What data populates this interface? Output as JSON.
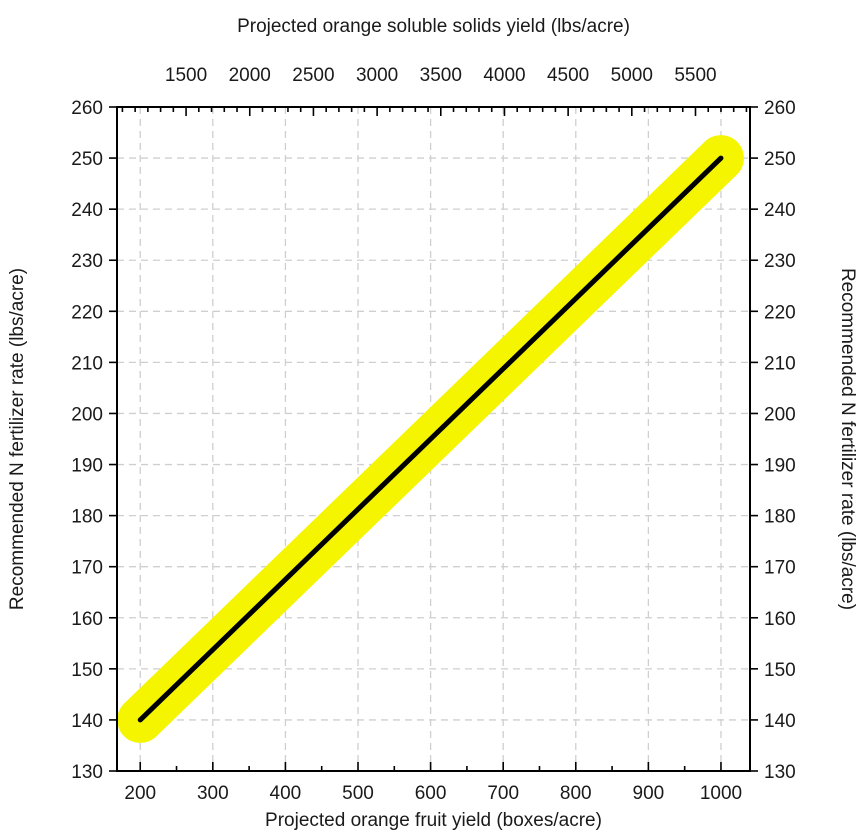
{
  "chart_data": {
    "type": "line",
    "xlabel": "Projected orange fruit yield (boxes/acre)",
    "x2label": "Projected orange soluble solids yield (lbs/acre)",
    "ylabel": "Recommended N fertilizer rate (lbs/acre)",
    "y2label": "Recommended N fertilizer rate (lbs/acre)",
    "xlim": [
      168,
      1040
    ],
    "ylim": [
      130,
      260
    ],
    "x2_per_x": 5.7,
    "x_ticks": [
      200,
      300,
      400,
      500,
      600,
      700,
      800,
      900,
      1000
    ],
    "x_minor_step": 50,
    "x2_ticks": [
      1500,
      2000,
      2500,
      3000,
      3500,
      4000,
      4500,
      5000,
      5500
    ],
    "x2_minor_step": 100,
    "y_ticks": [
      130,
      140,
      150,
      160,
      170,
      180,
      190,
      200,
      210,
      220,
      230,
      240,
      250,
      260
    ],
    "grid": true,
    "series": [
      {
        "x": [
          200,
          1000
        ],
        "y": [
          140,
          250
        ],
        "color": "#000000",
        "highlight_color": "#f5f500"
      }
    ]
  }
}
